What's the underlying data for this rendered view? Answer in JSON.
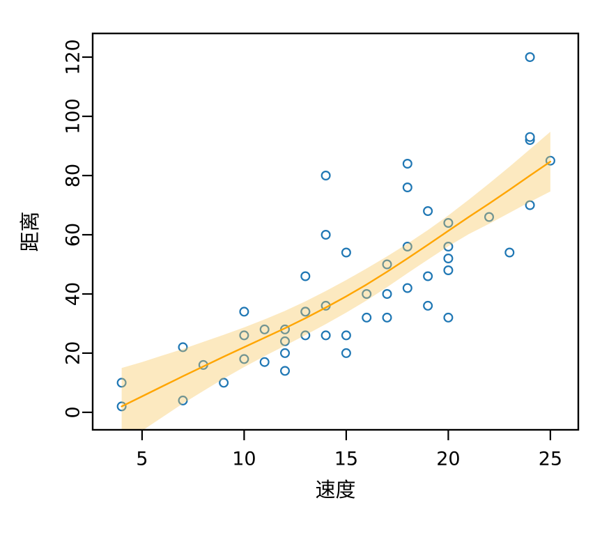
{
  "chart_data": {
    "type": "scatter",
    "xlabel": "速度",
    "ylabel": "距离",
    "x_ticks": [
      5,
      10,
      15,
      20,
      25
    ],
    "y_ticks": [
      0,
      20,
      40,
      60,
      80,
      100,
      120
    ],
    "xlim": [
      2.58,
      26.37
    ],
    "ylim": [
      -5.9,
      128
    ],
    "grid": false,
    "legend": "none",
    "points": [
      [
        4,
        2
      ],
      [
        4,
        10
      ],
      [
        7,
        4
      ],
      [
        7,
        22
      ],
      [
        8,
        16
      ],
      [
        9,
        10
      ],
      [
        10,
        18
      ],
      [
        10,
        26
      ],
      [
        10,
        34
      ],
      [
        11,
        17
      ],
      [
        11,
        28
      ],
      [
        12,
        14
      ],
      [
        12,
        20
      ],
      [
        12,
        24
      ],
      [
        12,
        28
      ],
      [
        13,
        26
      ],
      [
        13,
        34
      ],
      [
        13,
        34
      ],
      [
        13,
        46
      ],
      [
        14,
        26
      ],
      [
        14,
        36
      ],
      [
        14,
        60
      ],
      [
        14,
        80
      ],
      [
        15,
        20
      ],
      [
        15,
        26
      ],
      [
        15,
        54
      ],
      [
        16,
        32
      ],
      [
        16,
        40
      ],
      [
        17,
        32
      ],
      [
        17,
        40
      ],
      [
        17,
        50
      ],
      [
        18,
        42
      ],
      [
        18,
        56
      ],
      [
        18,
        76
      ],
      [
        18,
        84
      ],
      [
        19,
        36
      ],
      [
        19,
        46
      ],
      [
        19,
        68
      ],
      [
        20,
        32
      ],
      [
        20,
        48
      ],
      [
        20,
        52
      ],
      [
        20,
        56
      ],
      [
        20,
        64
      ],
      [
        22,
        66
      ],
      [
        23,
        54
      ],
      [
        24,
        70
      ],
      [
        24,
        92
      ],
      [
        24,
        93
      ],
      [
        24,
        120
      ],
      [
        25,
        85
      ]
    ],
    "smooth_line": {
      "x": [
        4,
        5,
        6,
        7,
        8,
        9,
        10,
        11,
        12,
        13,
        14,
        15,
        16,
        17,
        18,
        19,
        20,
        21,
        22,
        23,
        24,
        25
      ],
      "y": [
        2.0,
        5.4,
        8.8,
        12.2,
        15.5,
        18.8,
        22.0,
        25.2,
        28.4,
        31.8,
        35.4,
        39.2,
        43.2,
        47.5,
        52.0,
        56.6,
        61.3,
        66.0,
        70.5,
        75.2,
        80.0,
        84.7
      ]
    },
    "confidence_band": {
      "x": [
        4,
        5,
        6,
        7,
        8,
        9,
        10,
        11,
        12,
        13,
        14,
        15,
        16,
        17,
        18,
        19,
        20,
        21,
        22,
        23,
        24,
        25
      ],
      "upper": [
        15.0,
        17.0,
        19.2,
        21.4,
        23.8,
        26.2,
        28.7,
        31.4,
        34.3,
        37.5,
        41.0,
        44.7,
        48.6,
        52.7,
        57.0,
        61.6,
        66.5,
        71.8,
        77.3,
        83.0,
        88.9,
        94.8
      ],
      "lower": [
        -11.0,
        -6.2,
        -1.6,
        3.0,
        7.2,
        11.4,
        15.3,
        19.0,
        22.5,
        26.1,
        29.8,
        33.7,
        37.8,
        42.3,
        47.0,
        51.6,
        56.1,
        60.2,
        63.7,
        67.4,
        71.1,
        74.6
      ]
    },
    "colors": {
      "point_stroke": "#1F77B4",
      "point_fill": "#FFFFFF",
      "smooth_line": "#FFA500",
      "band_fill": "#F8C45A",
      "axis": "#000000"
    },
    "band_opacity": 0.38
  }
}
